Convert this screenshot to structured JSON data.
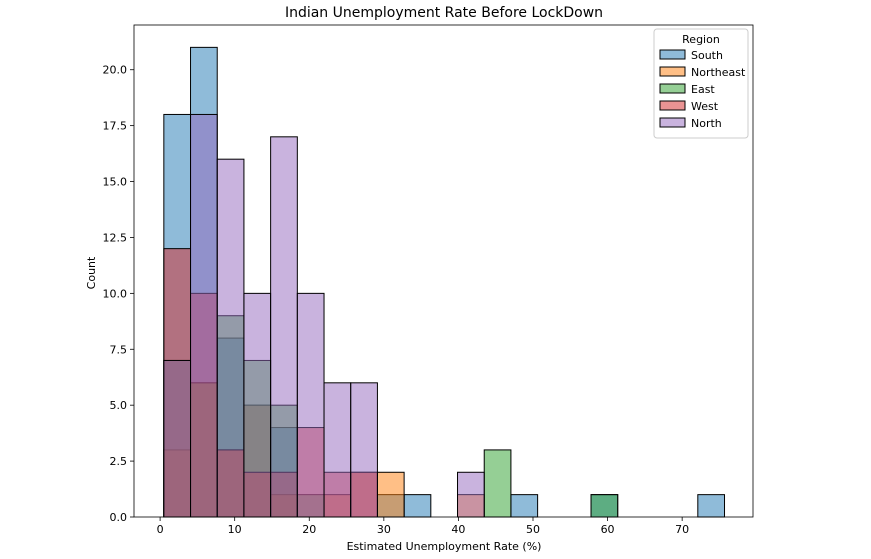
{
  "chart_data": {
    "type": "histogram",
    "title": "Indian Unemployment Rate Before LockDown",
    "xlabel": "Estimated Unemployment Rate (%)",
    "ylabel": "Count",
    "xlim": [
      -3.5,
      79.5
    ],
    "ylim": [
      0,
      22
    ],
    "xticks": [
      0,
      10,
      20,
      30,
      40,
      50,
      60,
      70
    ],
    "yticks": [
      0.0,
      2.5,
      5.0,
      7.5,
      10.0,
      12.5,
      15.0,
      17.5,
      20.0
    ],
    "bin_edges": [
      0.5,
      4.08,
      7.66,
      11.24,
      14.82,
      18.4,
      21.98,
      25.56,
      29.14,
      32.72,
      36.3,
      39.88,
      43.46,
      47.04,
      50.62,
      54.2,
      57.78,
      61.36,
      64.94,
      68.52,
      72.1,
      75.68
    ],
    "legend": {
      "title": "Region",
      "position": "top-right"
    },
    "series": [
      {
        "name": "South",
        "color": "#1f77b4",
        "counts": [
          18,
          21,
          8,
          5,
          4,
          0,
          0,
          0,
          1,
          1,
          0,
          0,
          0,
          1,
          0,
          0,
          1,
          0,
          0,
          0,
          1
        ]
      },
      {
        "name": "Northeast",
        "color": "#ff7f0e",
        "counts": [
          3,
          6,
          3,
          5,
          1,
          0,
          1,
          2,
          2,
          0,
          0,
          1,
          0,
          0,
          0,
          0,
          0,
          0,
          0,
          0,
          0
        ]
      },
      {
        "name": "East",
        "color": "#2ca02c",
        "counts": [
          7,
          6,
          9,
          7,
          5,
          1,
          0,
          0,
          0,
          0,
          0,
          0,
          3,
          0,
          0,
          0,
          1,
          0,
          0,
          0,
          0
        ]
      },
      {
        "name": "West",
        "color": "#d62728",
        "counts": [
          12,
          10,
          3,
          2,
          2,
          4,
          2,
          2,
          0,
          0,
          0,
          0,
          0,
          0,
          0,
          0,
          0,
          0,
          0,
          0,
          0
        ]
      },
      {
        "name": "North",
        "color": "#9467bd",
        "counts": [
          7,
          18,
          16,
          10,
          17,
          10,
          6,
          6,
          0,
          0,
          0,
          2,
          0,
          0,
          0,
          0,
          0,
          0,
          0,
          0,
          0
        ]
      }
    ]
  }
}
